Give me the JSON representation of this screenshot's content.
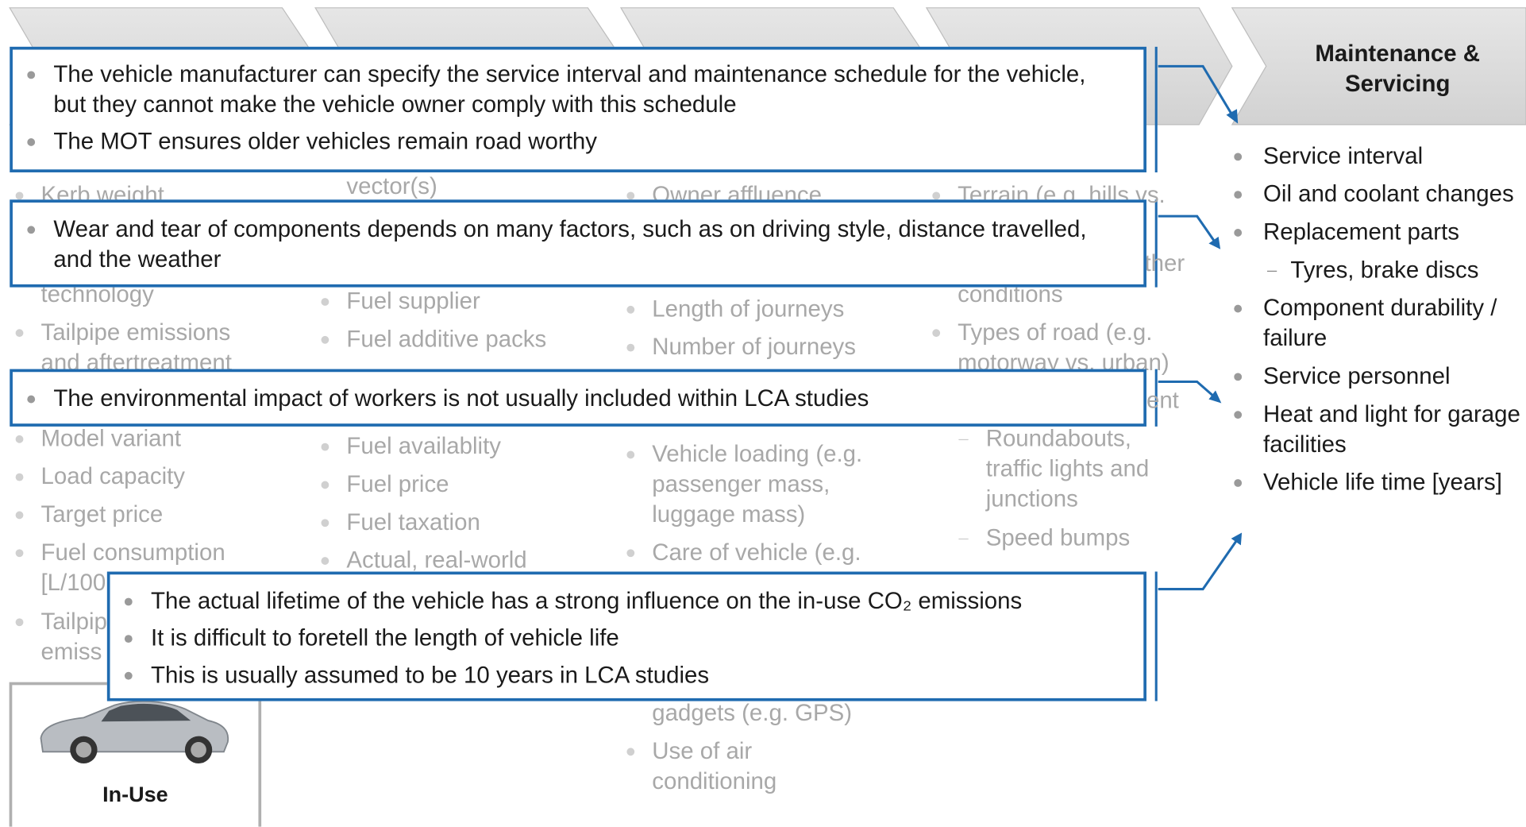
{
  "stage": {
    "title": "Maintenance & Servicing",
    "items": [
      {
        "text": "Service interval"
      },
      {
        "text": "Oil and coolant changes"
      },
      {
        "text": "Replacement parts",
        "sub": [
          "Tyres, brake discs"
        ]
      },
      {
        "text": "Component durability / failure"
      },
      {
        "text": "Service personnel"
      },
      {
        "text": "Heat and light for garage facilities"
      },
      {
        "text": "Vehicle life time [years]"
      }
    ]
  },
  "background_columns": [
    [
      [
        "Kerb weight"
      ],
      [
        "technology"
      ],
      [
        "Tailpipe emissions",
        "and aftertreatment"
      ],
      [
        "Model variant"
      ],
      [
        "Load capacity"
      ],
      [
        "Target price"
      ],
      [
        "Fuel consumption",
        "[L/100"
      ],
      [
        "Tailpip",
        "emiss"
      ]
    ],
    [
      [
        "vector(s)"
      ],
      [
        "Fuel supplier"
      ],
      [
        "Fuel additive packs"
      ],
      [
        "Fuel availablity"
      ],
      [
        "Fuel price"
      ],
      [
        "Fuel taxation"
      ],
      [
        "Actual, real-world"
      ]
    ],
    [
      [
        "Owner affluence"
      ],
      [
        "Length of journeys"
      ],
      [
        "Number of journeys"
      ],
      [
        "Vehicle loading (e.g.",
        "passenger mass,",
        "luggage mass)"
      ],
      [
        "Care of vehicle (e.g."
      ],
      [
        "gadgets (e.g. GPS)"
      ],
      [
        "Use of air",
        "conditioning"
      ]
    ],
    [
      [
        "Terrain (e.g. hills vs."
      ],
      [
        "ther"
      ],
      [
        "conditions"
      ],
      [
        "Types of road (e.g.",
        "motorway vs. urban)"
      ],
      [
        "ent"
      ],
      [
        "Roundabouts,",
        "traffic lights and",
        "junctions"
      ],
      [
        "Speed bumps"
      ]
    ]
  ],
  "callouts": [
    {
      "bullets": [
        "The vehicle manufacturer can specify the service interval and maintenance schedule for the vehicle, but they cannot make the vehicle owner comply with this schedule",
        "The MOT ensures older vehicles remain road worthy"
      ]
    },
    {
      "bullets": [
        "Wear and tear of components depends on many factors, such as on driving style, distance travelled, and the weather"
      ]
    },
    {
      "bullets": [
        "The environmental impact of workers is not usually included within LCA studies"
      ]
    },
    {
      "bullets": [
        "The actual lifetime of the vehicle has a strong influence on the in-use CO₂ emissions",
        "It is difficult to foretell the length of vehicle life",
        "This is usually assumed to be 10 years in LCA studies"
      ]
    }
  ],
  "in_use": {
    "label": "In-Use"
  }
}
